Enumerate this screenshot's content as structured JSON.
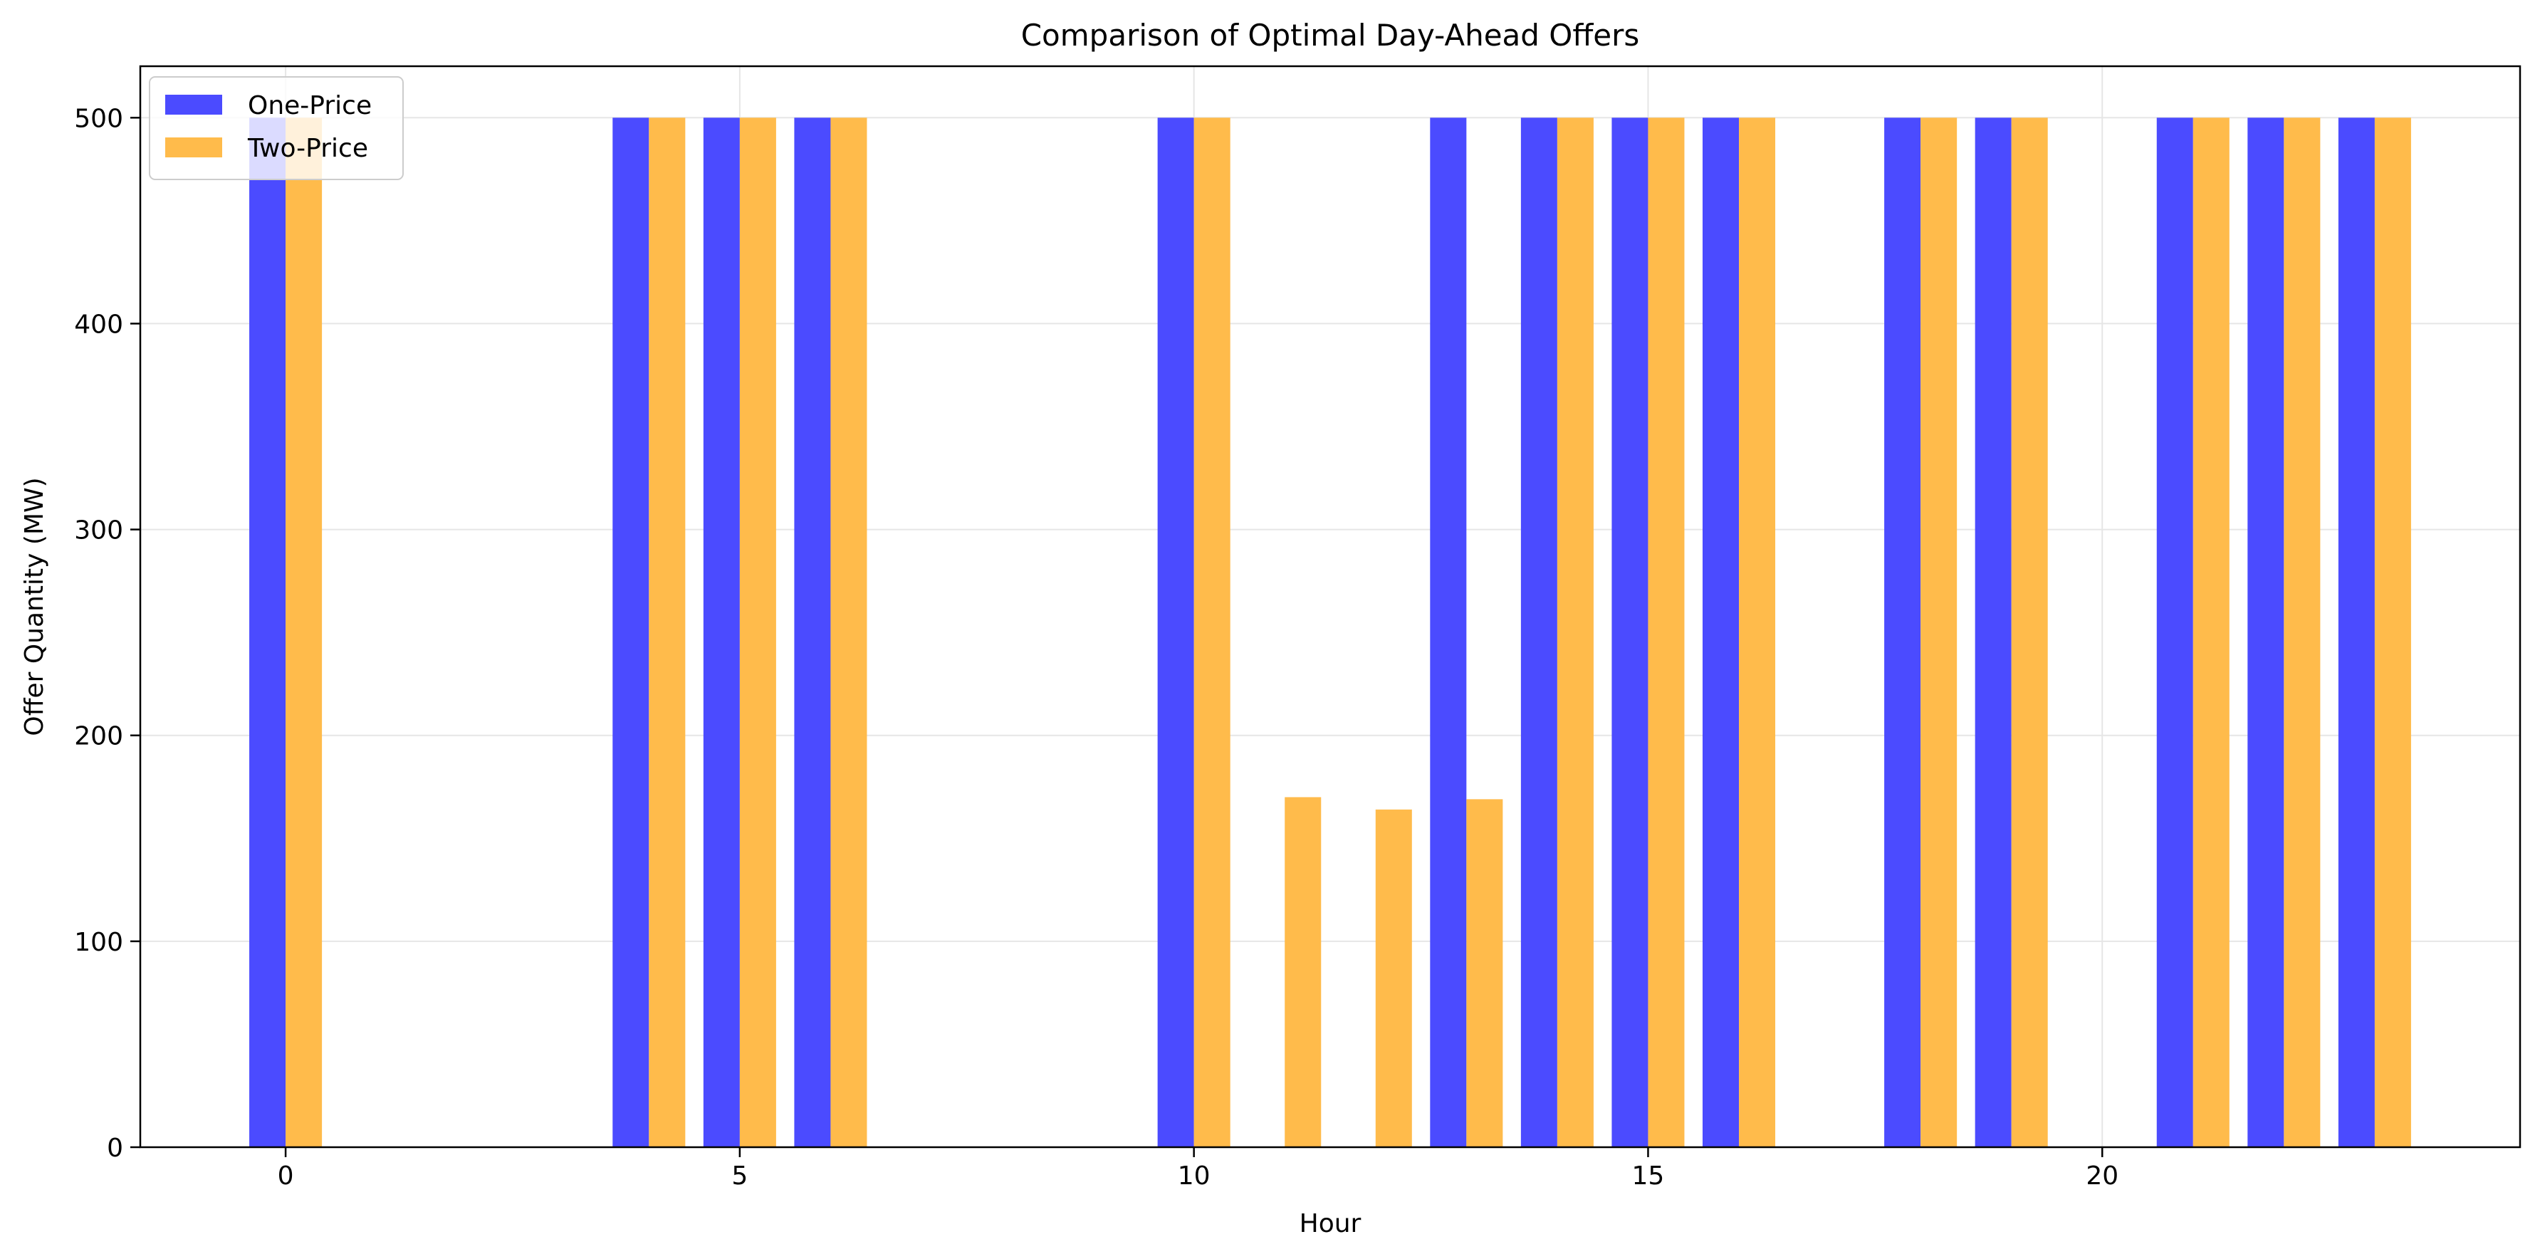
{
  "chart_data": {
    "type": "bar",
    "title": "Comparison of Optimal Day-Ahead Offers",
    "xlabel": "Hour",
    "ylabel": "Offer Quantity (MW)",
    "x": [
      0,
      1,
      2,
      3,
      4,
      5,
      6,
      7,
      8,
      9,
      10,
      11,
      12,
      13,
      14,
      15,
      16,
      17,
      18,
      19,
      20,
      21,
      22,
      23
    ],
    "xlim": [
      -1.6,
      24.6
    ],
    "ylim": [
      0,
      525
    ],
    "xticks": [
      0,
      5,
      10,
      15,
      20
    ],
    "yticks": [
      0,
      100,
      200,
      300,
      400,
      500
    ],
    "grid": true,
    "legend_position": "top-left",
    "series": [
      {
        "name": "One-Price",
        "color": "#4b4bff",
        "values": [
          500,
          0,
          0,
          0,
          500,
          500,
          500,
          0,
          0,
          0,
          500,
          0,
          0,
          500,
          500,
          500,
          500,
          0,
          500,
          500,
          0,
          500,
          500,
          500
        ]
      },
      {
        "name": "Two-Price",
        "color": "#ffbb4b",
        "values": [
          500,
          0,
          0,
          0,
          500,
          500,
          500,
          0,
          0,
          0,
          500,
          170,
          164,
          169,
          500,
          500,
          500,
          0,
          500,
          500,
          0,
          500,
          500,
          500
        ]
      }
    ]
  }
}
